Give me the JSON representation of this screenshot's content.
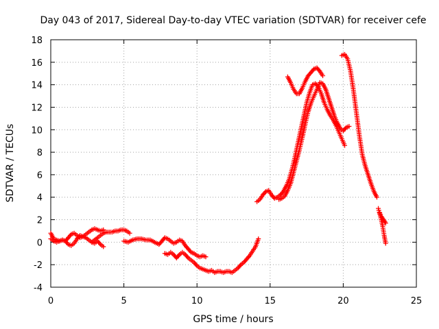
{
  "chart_data": {
    "type": "scatter",
    "title": "Day 043 of 2017, Sidereal Day-to-day VTEC variation (SDTVAR) for receiver cefe",
    "xlabel": "GPS time / hours",
    "ylabel": "SDTVAR / TECUs",
    "xlim": [
      0,
      25
    ],
    "ylim": [
      -4,
      18
    ],
    "xticks": [
      0,
      5,
      10,
      15,
      20,
      25
    ],
    "yticks": [
      -4,
      -2,
      0,
      2,
      4,
      6,
      8,
      10,
      12,
      14,
      16,
      18
    ],
    "grid": true,
    "marker": "plus",
    "color": "#ff0000",
    "series": [
      {
        "x": [
          0.0,
          0.2,
          0.4,
          0.6,
          0.8,
          1.0,
          1.2,
          1.4,
          1.6,
          1.8,
          2.0,
          2.2,
          2.4,
          2.6,
          2.8,
          3.0,
          3.2,
          3.4,
          3.6
        ],
        "y": [
          0.8,
          0.3,
          0.2,
          0.1,
          0.2,
          0.1,
          0.4,
          0.7,
          0.8,
          0.6,
          0.4,
          0.5,
          0.7,
          0.9,
          1.1,
          1.2,
          1.1,
          1.0,
          1.1
        ]
      },
      {
        "x": [
          0.0,
          0.2,
          0.4,
          0.6,
          0.8,
          1.0,
          1.2,
          1.4,
          1.6,
          1.8,
          2.0,
          2.2,
          2.4,
          2.6,
          2.8,
          3.0,
          3.2,
          3.4,
          3.6
        ],
        "y": [
          0.3,
          0.1,
          0.0,
          0.1,
          0.2,
          0.1,
          -0.2,
          -0.3,
          -0.1,
          0.3,
          0.6,
          0.5,
          0.4,
          0.2,
          0.0,
          -0.1,
          0.1,
          -0.2,
          -0.4
        ]
      },
      {
        "x": [
          2.8,
          3.0,
          3.2,
          3.4,
          3.6,
          3.8,
          4.0,
          4.2,
          4.4,
          4.6,
          4.8,
          5.0,
          5.2,
          5.4
        ],
        "y": [
          0.0,
          0.2,
          0.4,
          0.6,
          0.8,
          0.9,
          0.9,
          0.9,
          1.0,
          1.0,
          1.1,
          1.1,
          1.0,
          0.8
        ]
      },
      {
        "x": [
          5.0,
          5.3,
          5.6,
          5.9,
          6.2,
          6.5,
          6.8,
          7.1,
          7.4,
          7.6,
          7.8,
          8.0,
          8.2,
          8.4,
          8.6,
          8.8,
          9.0,
          9.2,
          9.4,
          9.6,
          9.8,
          10.0,
          10.2,
          10.4,
          10.6
        ],
        "y": [
          0.1,
          0.0,
          0.2,
          0.3,
          0.3,
          0.2,
          0.2,
          0.0,
          -0.2,
          0.1,
          0.4,
          0.3,
          0.1,
          -0.1,
          0.0,
          0.2,
          0.1,
          -0.3,
          -0.6,
          -0.9,
          -1.0,
          -1.2,
          -1.3,
          -1.2,
          -1.3
        ]
      },
      {
        "x": [
          7.8,
          8.0,
          8.2,
          8.4,
          8.6,
          8.8,
          9.0,
          9.2,
          9.4,
          9.6,
          9.8,
          10.0,
          10.2,
          10.4,
          10.6,
          10.8,
          11.0,
          11.2,
          11.4,
          11.6,
          11.8,
          12.0,
          12.2,
          12.4,
          12.6,
          12.8,
          13.0,
          13.2,
          13.4,
          13.6,
          13.8,
          14.0,
          14.2
        ],
        "y": [
          -1.0,
          -1.1,
          -0.9,
          -1.1,
          -1.4,
          -1.1,
          -0.9,
          -1.1,
          -1.4,
          -1.6,
          -1.8,
          -2.1,
          -2.3,
          -2.4,
          -2.5,
          -2.6,
          -2.5,
          -2.7,
          -2.6,
          -2.6,
          -2.7,
          -2.6,
          -2.6,
          -2.7,
          -2.5,
          -2.3,
          -2.0,
          -1.8,
          -1.5,
          -1.2,
          -0.8,
          -0.4,
          0.3
        ]
      },
      {
        "x": [
          14.1,
          14.3,
          14.5,
          14.7,
          14.9,
          15.1,
          15.3,
          15.5,
          15.7,
          15.9,
          16.1,
          16.3,
          16.5,
          16.7,
          16.9,
          17.1,
          17.3,
          17.5,
          17.7,
          17.9,
          18.1,
          18.3,
          18.5,
          18.7,
          18.9,
          19.1,
          19.3,
          19.5,
          19.7,
          19.9,
          20.1
        ],
        "y": [
          3.6,
          3.8,
          4.2,
          4.5,
          4.6,
          4.2,
          3.9,
          4.0,
          4.2,
          4.5,
          5.0,
          5.6,
          6.5,
          7.6,
          8.8,
          10.0,
          11.2,
          12.4,
          13.3,
          14.0,
          14.1,
          13.8,
          13.2,
          12.4,
          11.8,
          11.3,
          10.9,
          10.4,
          9.8,
          9.2,
          8.6
        ]
      },
      {
        "x": [
          15.6,
          15.8,
          16.0,
          16.2,
          16.4,
          16.6,
          16.8,
          17.0,
          17.2,
          17.4,
          17.6,
          17.8,
          18.0,
          18.2,
          18.4,
          18.6,
          18.8,
          19.0,
          19.2,
          19.4,
          19.6,
          19.8,
          20.0,
          20.2,
          20.4
        ],
        "y": [
          3.8,
          3.9,
          4.1,
          4.6,
          5.2,
          6.2,
          7.2,
          8.2,
          9.3,
          10.5,
          11.6,
          12.4,
          13.0,
          13.6,
          14.2,
          14.1,
          13.6,
          12.8,
          12.0,
          11.2,
          10.6,
          10.1,
          9.9,
          10.2,
          10.3
        ]
      },
      {
        "x": [
          16.2,
          16.4,
          16.6,
          16.8,
          17.0,
          17.2,
          17.4,
          17.6,
          17.8,
          18.0,
          18.2,
          18.4,
          18.6
        ],
        "y": [
          14.7,
          14.2,
          13.6,
          13.2,
          13.2,
          13.7,
          14.3,
          14.8,
          15.1,
          15.4,
          15.5,
          15.2,
          14.8
        ]
      },
      {
        "x": [
          19.9,
          20.1,
          20.3,
          20.5,
          20.7,
          20.9,
          21.1,
          21.3,
          21.5,
          21.7,
          21.9,
          22.1,
          22.3
        ],
        "y": [
          16.6,
          16.7,
          16.3,
          15.2,
          13.5,
          11.5,
          9.5,
          7.8,
          6.8,
          6.0,
          5.2,
          4.5,
          4.0
        ]
      },
      {
        "x": [
          22.4,
          22.5,
          22.6,
          22.7,
          22.8,
          22.9
        ],
        "y": [
          3.0,
          2.5,
          2.0,
          1.4,
          0.6,
          -0.1
        ]
      },
      {
        "x": [
          22.5,
          22.6,
          22.7,
          22.8,
          22.9
        ],
        "y": [
          2.6,
          2.3,
          2.1,
          1.9,
          1.7
        ]
      }
    ]
  }
}
